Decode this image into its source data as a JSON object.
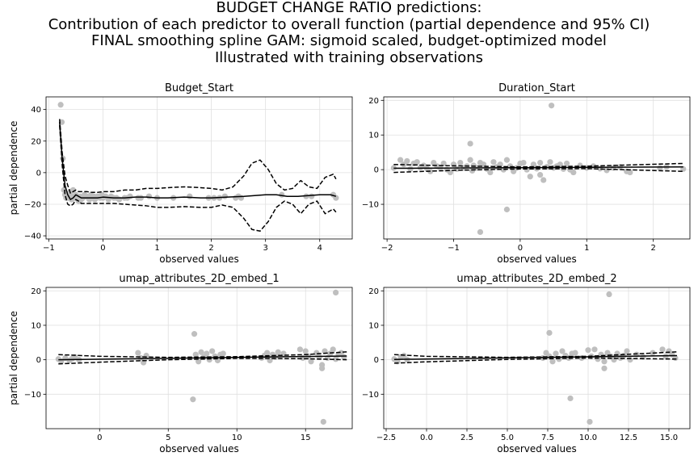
{
  "suptitle": {
    "line1": "BUDGET CHANGE RATIO predictions:",
    "line2": "Contribution of each predictor to overall function (partial dependence and 95% CI)",
    "line3": "FINAL smoothing spline GAM: sigmoid scaled, budget-optimized model",
    "line4": "Illustrated with training observations"
  },
  "chart_data": [
    {
      "type": "line",
      "title": "Budget_Start",
      "xlabel": "observed values",
      "ylabel": "partial dependence",
      "xlim": [
        -1.05,
        4.6
      ],
      "ylim": [
        -42,
        48
      ],
      "xticks": [
        -1,
        0,
        1,
        2,
        3,
        4
      ],
      "yticks": [
        -40,
        -20,
        0,
        20,
        40
      ],
      "grid": true,
      "series": [
        {
          "role": "partial_dependence",
          "style": "solid",
          "x": [
            -0.8,
            -0.75,
            -0.7,
            -0.65,
            -0.6,
            -0.55,
            -0.5,
            -0.45,
            -0.4,
            -0.3,
            -0.2,
            -0.1,
            0,
            0.2,
            0.4,
            0.6,
            0.8,
            1.0,
            1.2,
            1.5,
            1.8,
            2.0,
            2.3,
            2.6,
            2.8,
            3.0,
            3.2,
            3.4,
            3.6,
            3.8,
            4.0,
            4.2,
            4.3
          ],
          "y": [
            32,
            8,
            -8,
            -14,
            -17,
            -16,
            -14,
            -15,
            -16,
            -16,
            -16,
            -16,
            -15.5,
            -16,
            -16,
            -15.5,
            -15.5,
            -16,
            -16,
            -15.5,
            -16,
            -16,
            -15.5,
            -15,
            -14.5,
            -14,
            -14,
            -15,
            -15,
            -14.5,
            -14,
            -14,
            -15
          ]
        },
        {
          "role": "ci_upper",
          "style": "dashed",
          "x": [
            -0.8,
            -0.75,
            -0.7,
            -0.65,
            -0.6,
            -0.55,
            -0.5,
            -0.45,
            -0.4,
            -0.3,
            -0.2,
            -0.1,
            0,
            0.2,
            0.4,
            0.6,
            0.8,
            1.0,
            1.2,
            1.5,
            1.8,
            2.0,
            2.2,
            2.4,
            2.6,
            2.75,
            2.9,
            3.05,
            3.2,
            3.35,
            3.5,
            3.65,
            3.8,
            3.95,
            4.1,
            4.25,
            4.3
          ],
          "y": [
            34,
            12,
            -2,
            -8,
            -13,
            -12,
            -11,
            -12,
            -12,
            -12,
            -12.5,
            -12.5,
            -12,
            -12,
            -11,
            -11,
            -10,
            -10,
            -9.5,
            -9,
            -9.5,
            -10,
            -11,
            -9,
            -2,
            6,
            8,
            2,
            -7,
            -11,
            -10,
            -5,
            -9,
            -10,
            -3,
            -1,
            -4
          ]
        },
        {
          "role": "ci_lower",
          "style": "dashed",
          "x": [
            -0.8,
            -0.75,
            -0.7,
            -0.65,
            -0.6,
            -0.55,
            -0.5,
            -0.45,
            -0.4,
            -0.3,
            -0.2,
            -0.1,
            0,
            0.2,
            0.4,
            0.6,
            0.8,
            1.0,
            1.2,
            1.5,
            1.8,
            2.0,
            2.2,
            2.4,
            2.6,
            2.75,
            2.9,
            3.05,
            3.2,
            3.35,
            3.5,
            3.65,
            3.8,
            3.95,
            4.1,
            4.25,
            4.3
          ],
          "y": [
            30,
            4,
            -14,
            -20,
            -21,
            -20,
            -17,
            -18,
            -19.5,
            -19.5,
            -19.5,
            -19.5,
            -19.5,
            -19.5,
            -20,
            -20.5,
            -21,
            -22,
            -22,
            -21.5,
            -22,
            -22,
            -20.5,
            -22,
            -29,
            -36,
            -37,
            -31,
            -22,
            -18,
            -20,
            -26,
            -20,
            -18,
            -26,
            -23,
            -25
          ]
        }
      ],
      "observations": {
        "x": [
          -0.78,
          -0.76,
          -0.74,
          -0.72,
          -0.7,
          -0.68,
          -0.66,
          -0.64,
          -0.62,
          -0.6,
          -0.58,
          -0.56,
          -0.55,
          -0.52,
          -0.5,
          -0.48,
          -0.45,
          -0.42,
          -0.4,
          -0.37,
          -0.34,
          -0.3,
          -0.27,
          -0.25,
          -0.22,
          -0.2,
          -0.17,
          -0.15,
          -0.12,
          -0.1,
          -0.07,
          -0.05,
          -0.02,
          0,
          0.05,
          0.1,
          0.15,
          0.2,
          0.25,
          0.3,
          0.4,
          0.45,
          0.5,
          0.65,
          0.7,
          0.85,
          1.0,
          1.3,
          1.6,
          1.95,
          2.05,
          2.15,
          2.25,
          2.45,
          2.5,
          2.55,
          3.3,
          3.75,
          3.85,
          4.25,
          4.3
        ],
        "y": [
          43,
          32,
          9,
          -11,
          -14,
          -16,
          -14,
          -16,
          -13,
          -12,
          -17,
          -15,
          -11,
          -16,
          -14,
          -16,
          -18,
          -15,
          -17,
          -16,
          -14,
          -15,
          -16,
          -17,
          -14,
          -16,
          -15,
          -17,
          -16,
          -15,
          -15,
          -16,
          -14,
          -16,
          -15,
          -17,
          -15,
          -16,
          -16,
          -17,
          -16,
          -16,
          -15,
          -16,
          -16,
          -15,
          -16,
          -16,
          -15,
          -16,
          -16,
          -16,
          -15,
          -16,
          -15,
          -16,
          -14,
          -15,
          -15,
          -14,
          -16
        ]
      }
    },
    {
      "type": "line",
      "title": "Duration_Start",
      "xlabel": "observed values",
      "ylabel": "",
      "xlim": [
        -2.05,
        2.55
      ],
      "ylim": [
        -20,
        21
      ],
      "xticks": [
        -2,
        -1,
        0,
        1,
        2
      ],
      "yticks": [
        -10,
        0,
        10,
        20
      ],
      "grid": true,
      "series": [
        {
          "role": "partial_dependence",
          "style": "solid",
          "x": [
            -1.9,
            2.45
          ],
          "y": [
            0.4,
            0.8
          ]
        },
        {
          "role": "ci_upper",
          "style": "dashed",
          "x": [
            -1.9,
            -1.0,
            0,
            1.0,
            2.45
          ],
          "y": [
            1.5,
            1.1,
            0.8,
            1.0,
            1.8
          ]
        },
        {
          "role": "ci_lower",
          "style": "dashed",
          "x": [
            -1.9,
            -1.0,
            0,
            1.0,
            2.45
          ],
          "y": [
            -0.8,
            -0.2,
            0.2,
            0.3,
            -0.5
          ]
        }
      ],
      "observations": {
        "x": [
          -1.9,
          -1.8,
          -1.75,
          -1.7,
          -1.65,
          -1.6,
          -1.55,
          -1.5,
          -1.45,
          -1.4,
          -1.35,
          -1.3,
          -1.25,
          -1.2,
          -1.15,
          -1.1,
          -1.05,
          -1.0,
          -0.95,
          -0.9,
          -0.85,
          -0.8,
          -0.75,
          -0.72,
          -0.7,
          -0.65,
          -0.6,
          -0.55,
          -0.5,
          -0.45,
          -0.4,
          -0.35,
          -0.3,
          -0.25,
          -0.2,
          -0.15,
          -0.1,
          -0.05,
          0,
          0.05,
          0.1,
          0.15,
          0.2,
          0.25,
          0.3,
          0.35,
          0.4,
          0.45,
          0.5,
          0.55,
          0.6,
          0.65,
          0.7,
          0.75,
          0.8,
          0.9,
          1.0,
          1.1,
          1.2,
          1.3,
          1.4,
          1.5,
          1.6,
          1.65,
          2.1,
          2.2,
          2.45,
          -0.2,
          -0.6,
          0.47,
          0.3,
          -0.75
        ],
        "y": [
          0.5,
          2.8,
          1.5,
          2.5,
          0.2,
          1.8,
          2.2,
          0.6,
          1.2,
          0.3,
          -0.5,
          2.0,
          1.0,
          0.5,
          1.8,
          0.0,
          -0.8,
          1.5,
          0.2,
          2.0,
          0.5,
          1.0,
          2.8,
          -0.3,
          1.2,
          0.5,
          2.0,
          1.5,
          0.2,
          -0.8,
          2.2,
          0.8,
          1.5,
          0.0,
          2.8,
          1.0,
          -0.5,
          0.5,
          1.8,
          2.0,
          0.0,
          -2.0,
          1.5,
          0.3,
          2.0,
          -3.0,
          0.8,
          2.2,
          0.5,
          1.0,
          1.5,
          0.2,
          1.8,
          0.0,
          -0.8,
          1.2,
          0.5,
          1.0,
          0.3,
          -0.2,
          0.5,
          0.8,
          -0.5,
          -0.8,
          0.5,
          0.8,
          0.2,
          -11.5,
          -18,
          18.5,
          -1.5,
          7.5
        ]
      }
    },
    {
      "type": "line",
      "title": "umap_attributes_2D_embed_1",
      "xlabel": "observed values",
      "ylabel": "partial dependence",
      "xlim": [
        -3.9,
        18.4
      ],
      "ylim": [
        -20,
        21
      ],
      "xticks": [
        0,
        5,
        10,
        15
      ],
      "yticks": [
        -10,
        0,
        10,
        20
      ],
      "grid": true,
      "series": [
        {
          "role": "partial_dependence",
          "style": "solid",
          "x": [
            -3,
            18
          ],
          "y": [
            0.0,
            1.1
          ]
        },
        {
          "role": "ci_upper",
          "style": "dashed",
          "x": [
            -3,
            0,
            5,
            10,
            15,
            18
          ],
          "y": [
            1.5,
            1.0,
            0.7,
            0.9,
            1.5,
            2.3
          ]
        },
        {
          "role": "ci_lower",
          "style": "dashed",
          "x": [
            -3,
            0,
            5,
            10,
            15,
            18
          ],
          "y": [
            -1.2,
            -0.7,
            0.0,
            0.4,
            0.3,
            0.0
          ]
        }
      ],
      "observations": {
        "x": [
          -3,
          -2.8,
          -2.5,
          -2.2,
          -2.0,
          -1.8,
          -1.5,
          2.8,
          3.0,
          3.2,
          3.4,
          7.0,
          7.2,
          7.4,
          7.6,
          7.8,
          8.0,
          8.2,
          8.4,
          8.6,
          8.8,
          9.0,
          11.8,
          12.0,
          12.2,
          12.4,
          12.6,
          12.8,
          13.0,
          13.4,
          14.6,
          14.8,
          15.0,
          15.2,
          15.4,
          15.8,
          16.0,
          16.2,
          16.4,
          16.6,
          16.8,
          17.0,
          17.2,
          17.4,
          17.6,
          17.8,
          6.9,
          6.8,
          17.2,
          16.3,
          16.2
        ],
        "y": [
          0.2,
          -0.5,
          0.5,
          -0.2,
          0.3,
          0.8,
          0.0,
          2.0,
          0.5,
          -0.8,
          1.2,
          1.5,
          -0.5,
          2.2,
          0.8,
          1.8,
          0.0,
          2.5,
          1.0,
          -0.2,
          1.5,
          1.8,
          0.5,
          1.2,
          2.0,
          -0.2,
          1.5,
          0.8,
          2.2,
          1.8,
          3.0,
          0.5,
          2.5,
          1.0,
          -0.5,
          2.0,
          0.8,
          -1.5,
          2.5,
          0.5,
          1.8,
          3.0,
          0.2,
          1.5,
          2.0,
          0.8,
          7.5,
          -11.5,
          19.5,
          -18,
          -2.5
        ]
      }
    },
    {
      "type": "line",
      "title": "umap_attributes_2D_embed_2",
      "xlabel": "observed values",
      "ylabel": "",
      "xlim": [
        -2.65,
        16.3
      ],
      "ylim": [
        -20,
        21
      ],
      "xticks": [
        -2.5,
        0.0,
        2.5,
        5.0,
        7.5,
        10.0,
        12.5,
        15.0
      ],
      "yticks": [
        -10,
        0,
        10,
        20
      ],
      "grid": true,
      "series": [
        {
          "role": "partial_dependence",
          "style": "solid",
          "x": [
            -2,
            15.5
          ],
          "y": [
            0.1,
            1.2
          ]
        },
        {
          "role": "ci_upper",
          "style": "dashed",
          "x": [
            -2,
            0,
            5,
            10,
            15.5
          ],
          "y": [
            1.5,
            1.0,
            0.7,
            1.0,
            2.3
          ]
        },
        {
          "role": "ci_lower",
          "style": "dashed",
          "x": [
            -2,
            0,
            5,
            10,
            15.5
          ],
          "y": [
            -1.0,
            -0.6,
            0.1,
            0.5,
            0.2
          ]
        }
      ],
      "observations": {
        "x": [
          -2.0,
          -1.8,
          -1.6,
          -1.4,
          -1.2,
          7.2,
          7.4,
          7.6,
          7.8,
          8.0,
          8.2,
          8.4,
          8.6,
          8.8,
          9.0,
          9.2,
          9.6,
          10.0,
          10.2,
          10.4,
          10.6,
          10.8,
          11.0,
          11.2,
          11.4,
          11.6,
          11.8,
          12.0,
          12.2,
          12.4,
          12.6,
          13.0,
          13.4,
          14.0,
          14.6,
          14.8,
          15.0,
          15.2,
          15.4,
          7.6,
          8.9,
          10.1,
          11.3,
          11.0
        ],
        "y": [
          0.2,
          -0.5,
          0.8,
          1.2,
          0.0,
          0.5,
          2.0,
          1.0,
          -0.5,
          1.8,
          0.2,
          2.5,
          1.2,
          0.5,
          1.8,
          2.0,
          0.5,
          2.8,
          1.0,
          3.0,
          0.2,
          1.5,
          -0.5,
          2.0,
          1.0,
          0.0,
          1.8,
          0.5,
          1.2,
          2.5,
          0.0,
          1.5,
          0.8,
          2.0,
          3.0,
          1.0,
          2.5,
          1.5,
          0.5,
          7.8,
          -11.2,
          -18,
          19.0,
          -2.5
        ]
      }
    }
  ]
}
